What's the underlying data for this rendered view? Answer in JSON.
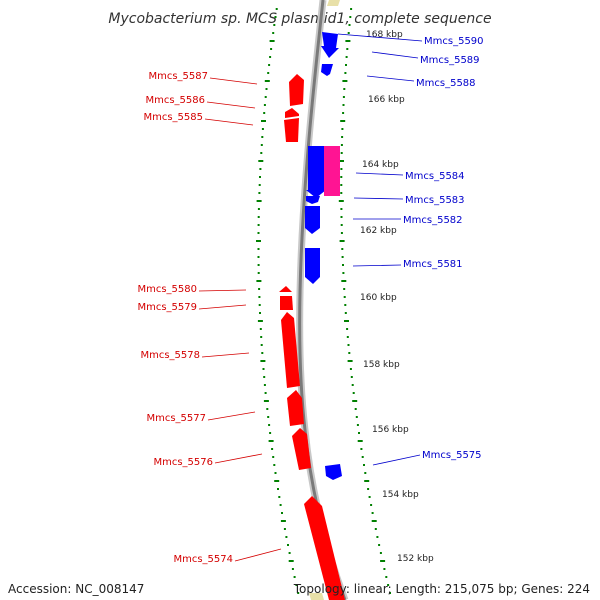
{
  "title": "Mycobacterium sp. MCS plasmid1, complete sequence",
  "accession": "Accession: NC_008147",
  "topology": "Topology: linear; Length: 215,075 bp; Genes: 224",
  "colors": {
    "backbone": "#7a7a7a",
    "backbone_light": "#c8c8c8",
    "forward_gene": "#0000ff",
    "reverse_gene": "#ff0000",
    "rna_gene": "#ff1493",
    "gc_dots": "#008000",
    "forward_label": "#0000cc",
    "reverse_label": "#d40000",
    "edge_feature": "#e8e0a8"
  },
  "scale_ticks": [
    "168 kbp",
    "166 kbp",
    "164 kbp",
    "162 kbp",
    "160 kbp",
    "158 kbp",
    "156 kbp",
    "154 kbp",
    "152 kbp"
  ],
  "forward_labels": [
    "Mmcs_5590",
    "Mmcs_5589",
    "Mmcs_5588",
    "Mmcs_5584",
    "Mmcs_5583",
    "Mmcs_5582",
    "Mmcs_5581",
    "Mmcs_5575"
  ],
  "reverse_labels": [
    "Mmcs_5587",
    "Mmcs_5586",
    "Mmcs_5585",
    "Mmcs_5580",
    "Mmcs_5579",
    "Mmcs_5578",
    "Mmcs_5577",
    "Mmcs_5576",
    "Mmcs_5574"
  ]
}
